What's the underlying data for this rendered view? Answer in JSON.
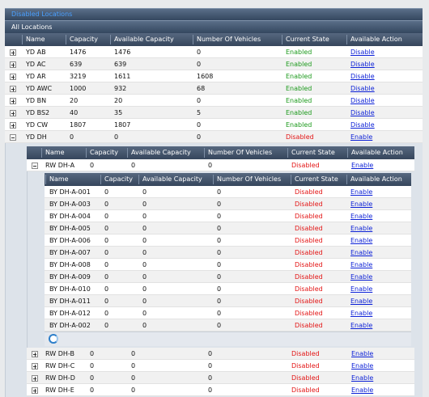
{
  "panels": {
    "disabled": "Disabled Locations",
    "all": "All Locations"
  },
  "columns": [
    "Name",
    "Capacity",
    "Available Capacity",
    "Number Of Vehicles",
    "Current State",
    "Available Action"
  ],
  "state_colors": {
    "Enabled": "#1c9a1c",
    "Disabled": "#e31414"
  },
  "locations": [
    {
      "name": "YD AB",
      "capacity": 1476,
      "available_capacity": 1476,
      "vehicles": 0,
      "state": "Enabled",
      "action": "Disable"
    },
    {
      "name": "YD AC",
      "capacity": 639,
      "available_capacity": 639,
      "vehicles": 0,
      "state": "Enabled",
      "action": "Disable"
    },
    {
      "name": "YD AR",
      "capacity": 3219,
      "available_capacity": 1611,
      "vehicles": 1608,
      "state": "Enabled",
      "action": "Disable"
    },
    {
      "name": "YD AWC",
      "capacity": 1000,
      "available_capacity": 932,
      "vehicles": 68,
      "state": "Enabled",
      "action": "Disable"
    },
    {
      "name": "YD BN",
      "capacity": 20,
      "available_capacity": 20,
      "vehicles": 0,
      "state": "Enabled",
      "action": "Disable"
    },
    {
      "name": "YD BS2",
      "capacity": 40,
      "available_capacity": 35,
      "vehicles": 5,
      "state": "Enabled",
      "action": "Disable"
    },
    {
      "name": "YD CW",
      "capacity": 1807,
      "available_capacity": 1807,
      "vehicles": 0,
      "state": "Enabled",
      "action": "Disable"
    },
    {
      "name": "YD DH",
      "capacity": 0,
      "available_capacity": 0,
      "vehicles": 0,
      "state": "Disabled",
      "action": "Enable",
      "sublocations": [
        {
          "name": "RW DH-A",
          "capacity": 0,
          "available_capacity": 0,
          "vehicles": 0,
          "state": "Disabled",
          "action": "Enable",
          "sublocations": [
            {
              "name": "BY DH-A-001",
              "capacity": 0,
              "available_capacity": 0,
              "vehicles": 0,
              "state": "Disabled",
              "action": "Enable"
            },
            {
              "name": "BY DH-A-003",
              "capacity": 0,
              "available_capacity": 0,
              "vehicles": 0,
              "state": "Disabled",
              "action": "Enable"
            },
            {
              "name": "BY DH-A-004",
              "capacity": 0,
              "available_capacity": 0,
              "vehicles": 0,
              "state": "Disabled",
              "action": "Enable"
            },
            {
              "name": "BY DH-A-005",
              "capacity": 0,
              "available_capacity": 0,
              "vehicles": 0,
              "state": "Disabled",
              "action": "Enable"
            },
            {
              "name": "BY DH-A-006",
              "capacity": 0,
              "available_capacity": 0,
              "vehicles": 0,
              "state": "Disabled",
              "action": "Enable"
            },
            {
              "name": "BY DH-A-007",
              "capacity": 0,
              "available_capacity": 0,
              "vehicles": 0,
              "state": "Disabled",
              "action": "Enable"
            },
            {
              "name": "BY DH-A-008",
              "capacity": 0,
              "available_capacity": 0,
              "vehicles": 0,
              "state": "Disabled",
              "action": "Enable"
            },
            {
              "name": "BY DH-A-009",
              "capacity": 0,
              "available_capacity": 0,
              "vehicles": 0,
              "state": "Disabled",
              "action": "Enable"
            },
            {
              "name": "BY DH-A-010",
              "capacity": 0,
              "available_capacity": 0,
              "vehicles": 0,
              "state": "Disabled",
              "action": "Enable"
            },
            {
              "name": "BY DH-A-011",
              "capacity": 0,
              "available_capacity": 0,
              "vehicles": 0,
              "state": "Disabled",
              "action": "Enable"
            },
            {
              "name": "BY DH-A-012",
              "capacity": 0,
              "available_capacity": 0,
              "vehicles": 0,
              "state": "Disabled",
              "action": "Enable"
            },
            {
              "name": "BY DH-A-002",
              "capacity": 0,
              "available_capacity": 0,
              "vehicles": 0,
              "state": "Disabled",
              "action": "Enable"
            }
          ]
        },
        {
          "name": "RW DH-B",
          "capacity": 0,
          "available_capacity": 0,
          "vehicles": 0,
          "state": "Disabled",
          "action": "Enable"
        },
        {
          "name": "RW DH-C",
          "capacity": 0,
          "available_capacity": 0,
          "vehicles": 0,
          "state": "Disabled",
          "action": "Enable"
        },
        {
          "name": "RW DH-D",
          "capacity": 0,
          "available_capacity": 0,
          "vehicles": 0,
          "state": "Disabled",
          "action": "Enable"
        },
        {
          "name": "RW DH-E",
          "capacity": 0,
          "available_capacity": 0,
          "vehicles": 0,
          "state": "Disabled",
          "action": "Enable"
        }
      ]
    }
  ]
}
